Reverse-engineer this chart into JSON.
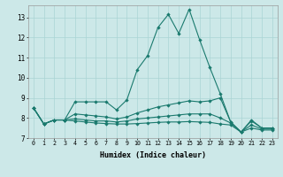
{
  "xlabel": "Humidex (Indice chaleur)",
  "bg_color": "#cce8e8",
  "grid_color": "#aad4d4",
  "line_color": "#1a7a6e",
  "xlim": [
    -0.5,
    23.5
  ],
  "ylim": [
    7.0,
    13.6
  ],
  "yticks": [
    7,
    8,
    9,
    10,
    11,
    12,
    13
  ],
  "xticks": [
    0,
    1,
    2,
    3,
    4,
    5,
    6,
    7,
    8,
    9,
    10,
    11,
    12,
    13,
    14,
    15,
    16,
    17,
    18,
    19,
    20,
    21,
    22,
    23
  ],
  "line1": [
    8.5,
    7.7,
    7.9,
    7.9,
    8.8,
    8.8,
    8.8,
    8.8,
    8.4,
    8.9,
    10.4,
    11.1,
    12.5,
    13.15,
    12.2,
    13.4,
    11.9,
    10.5,
    9.2,
    7.8,
    7.3,
    7.9,
    7.5,
    7.5
  ],
  "line2": [
    8.5,
    7.7,
    7.9,
    7.9,
    8.2,
    8.15,
    8.1,
    8.05,
    7.95,
    8.05,
    8.25,
    8.4,
    8.55,
    8.65,
    8.75,
    8.85,
    8.8,
    8.85,
    9.0,
    7.8,
    7.3,
    7.85,
    7.5,
    7.5
  ],
  "line3": [
    8.5,
    7.7,
    7.9,
    7.9,
    7.95,
    7.9,
    7.85,
    7.85,
    7.8,
    7.85,
    7.95,
    8.0,
    8.05,
    8.1,
    8.15,
    8.2,
    8.2,
    8.2,
    8.0,
    7.75,
    7.3,
    7.65,
    7.45,
    7.45
  ],
  "line4": [
    8.5,
    7.7,
    7.9,
    7.9,
    7.85,
    7.8,
    7.75,
    7.72,
    7.7,
    7.7,
    7.72,
    7.75,
    7.78,
    7.8,
    7.8,
    7.82,
    7.8,
    7.78,
    7.7,
    7.65,
    7.3,
    7.5,
    7.4,
    7.4
  ]
}
